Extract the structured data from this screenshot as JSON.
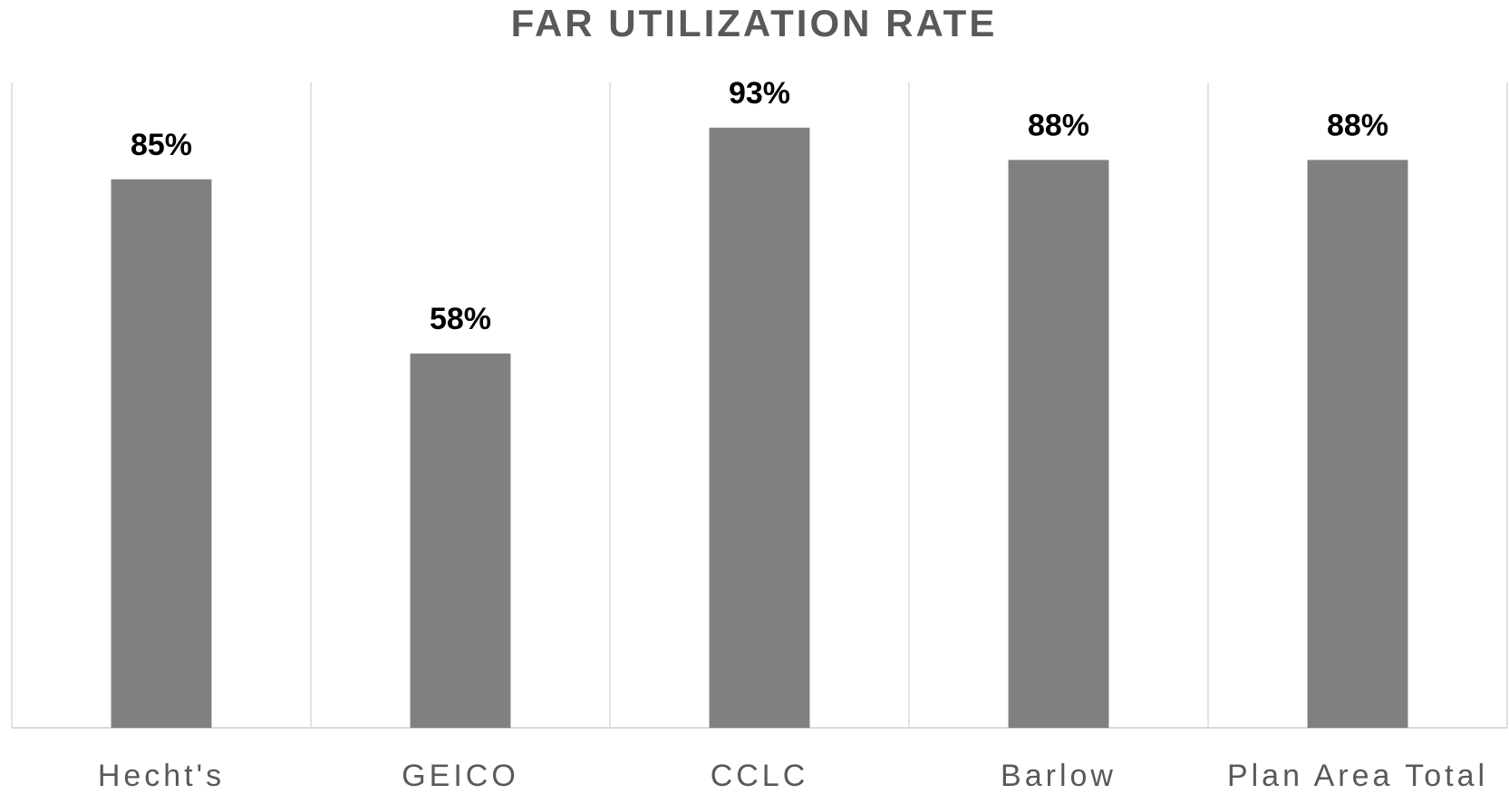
{
  "chart_data": {
    "type": "bar",
    "title": "FAR UTILIZATION RATE",
    "categories": [
      "Hecht's",
      "GEICO",
      "CCLC",
      "Barlow",
      "Plan Area Total"
    ],
    "values": [
      85,
      58,
      93,
      88,
      88
    ],
    "value_labels": [
      "85%",
      "58%",
      "93%",
      "88%",
      "88%"
    ],
    "color": "#808080",
    "ylim": [
      0,
      100
    ]
  }
}
